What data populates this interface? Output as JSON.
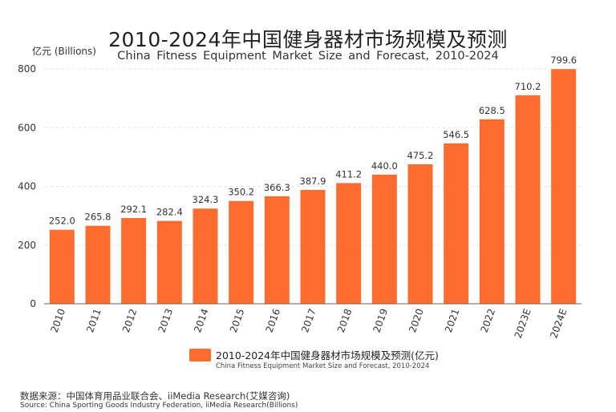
{
  "chart_data": {
    "type": "bar",
    "title": "2010-2024年中国健身器材市场规模及预测",
    "subtitle": "China Fitness Equipment Market Size and Forecast, 2010-2024",
    "ylabel": "亿元 (Billions)",
    "xlabel": "",
    "categories": [
      "2010",
      "2011",
      "2012",
      "2013",
      "2014",
      "2015",
      "2016",
      "2017",
      "2018",
      "2019",
      "2020",
      "2021",
      "2022",
      "2023E",
      "2024E"
    ],
    "series": [
      {
        "name": "2010-2024年中国健身器材市场规模及预测(亿元)",
        "values": [
          252.0,
          265.8,
          292.1,
          282.4,
          324.3,
          350.2,
          366.3,
          387.9,
          411.2,
          440.0,
          475.2,
          546.5,
          628.5,
          710.2,
          799.6
        ]
      }
    ],
    "value_labels": [
      "252.0",
      "265.8",
      "292.1",
      "282.4",
      "324.3",
      "350.2",
      "366.3",
      "387.9",
      "411.2",
      "440.0",
      "475.2",
      "546.5",
      "628.5",
      "710.2",
      "799.6"
    ],
    "ylim": [
      0,
      800
    ],
    "yticks": [
      "0",
      "200",
      "400",
      "600",
      "800"
    ],
    "grid": true,
    "legend_position": "bottom",
    "legend_subtitle": "China Fitness Equipment Market Size and Forecast, 2010-2024",
    "bar_color": "#ff6c30"
  },
  "source": {
    "cn": "数据来源：中国体育用品业联合会、iiMedia Research(艾媒咨询)",
    "en": "Source: China Sporting Goods Industry Federation, iiMedia Research(Billions)"
  }
}
